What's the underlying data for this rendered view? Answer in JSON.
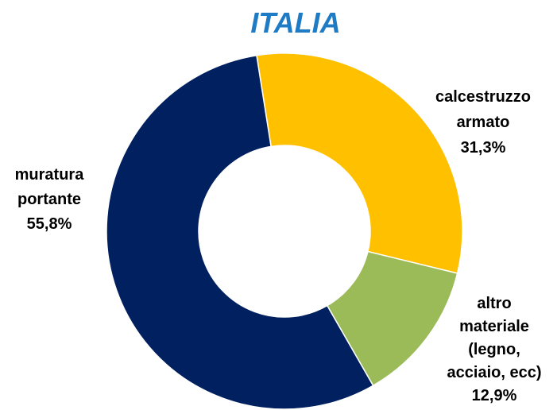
{
  "chart_data": {
    "type": "pie",
    "title": "ITALIA",
    "categories": [
      "calcestruzzo armato",
      "altro materiale (legno, acciaio, ecc)",
      "muratura portante"
    ],
    "values": [
      31.3,
      12.9,
      55.8
    ],
    "value_labels": [
      "31,3%",
      "12,9%",
      "55,8%"
    ],
    "colors": [
      "#ffc000",
      "#9bbb59",
      "#002060"
    ]
  }
}
